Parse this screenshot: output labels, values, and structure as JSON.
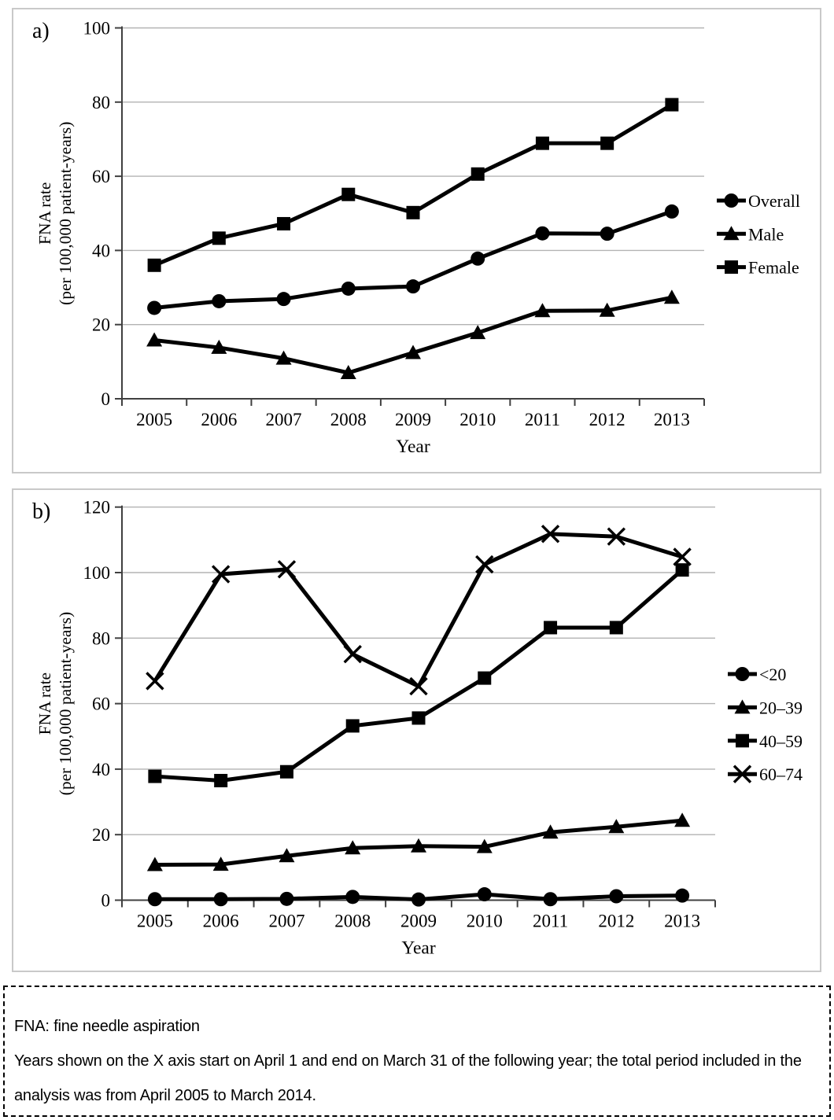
{
  "footnote": {
    "line1": "FNA: fine needle aspiration",
    "line2": "Years shown on the X axis start on April 1 and end on March 31 of the following year; the total period included in the analysis was from April 2005 to March 2014."
  },
  "colors": {
    "series_line": "#000000",
    "gridline": "#b3b3b3",
    "axis": "#404040",
    "panel_border": "#c9c9c9",
    "text": "#000000"
  },
  "chart_data": [
    {
      "id": "a",
      "type": "line",
      "panel_label": "a)",
      "xlabel": "Year",
      "ylabel_line1": "FNA rate",
      "ylabel_line2": "(per 100,000 patient-years)",
      "categories": [
        "2005",
        "2006",
        "2007",
        "2008",
        "2009",
        "2010",
        "2011",
        "2012",
        "2013"
      ],
      "ylim": [
        0,
        100
      ],
      "yticks": [
        0,
        20,
        40,
        60,
        80,
        100
      ],
      "grid": true,
      "legend_position": "right",
      "series": [
        {
          "name": "Overall",
          "marker": "circle",
          "values": [
            24.5,
            26.3,
            26.9,
            29.7,
            30.3,
            37.8,
            44.6,
            44.5,
            50.5
          ]
        },
        {
          "name": "Male",
          "marker": "triangle",
          "values": [
            15.8,
            13.8,
            10.9,
            7.0,
            12.4,
            17.8,
            23.7,
            23.8,
            27.3
          ]
        },
        {
          "name": "Female",
          "marker": "square",
          "values": [
            36.0,
            43.3,
            47.2,
            55.1,
            50.2,
            60.6,
            68.9,
            68.9,
            79.3
          ]
        }
      ]
    },
    {
      "id": "b",
      "type": "line",
      "panel_label": "b)",
      "xlabel": "Year",
      "ylabel_line1": "FNA rate",
      "ylabel_line2": "(per 100,000 patient-years)",
      "categories": [
        "2005",
        "2006",
        "2007",
        "2008",
        "2009",
        "2010",
        "2011",
        "2012",
        "2013"
      ],
      "ylim": [
        0,
        120
      ],
      "yticks": [
        0,
        20,
        40,
        60,
        80,
        100,
        120
      ],
      "grid": true,
      "legend_position": "right",
      "series": [
        {
          "name": "<20",
          "marker": "circle",
          "values": [
            0.3,
            0.3,
            0.4,
            1.0,
            0.2,
            1.8,
            0.3,
            1.2,
            1.4
          ]
        },
        {
          "name": "20–39",
          "marker": "triangle",
          "values": [
            10.8,
            10.9,
            13.5,
            15.9,
            16.5,
            16.3,
            20.7,
            22.4,
            24.3
          ]
        },
        {
          "name": "40–59",
          "marker": "square",
          "values": [
            37.8,
            36.5,
            39.2,
            53.2,
            55.6,
            67.8,
            83.2,
            83.2,
            100.8
          ]
        },
        {
          "name": "60–74",
          "marker": "x",
          "values": [
            66.9,
            99.5,
            101.0,
            75.1,
            65.3,
            102.5,
            111.8,
            111.0,
            104.8
          ]
        }
      ]
    }
  ]
}
